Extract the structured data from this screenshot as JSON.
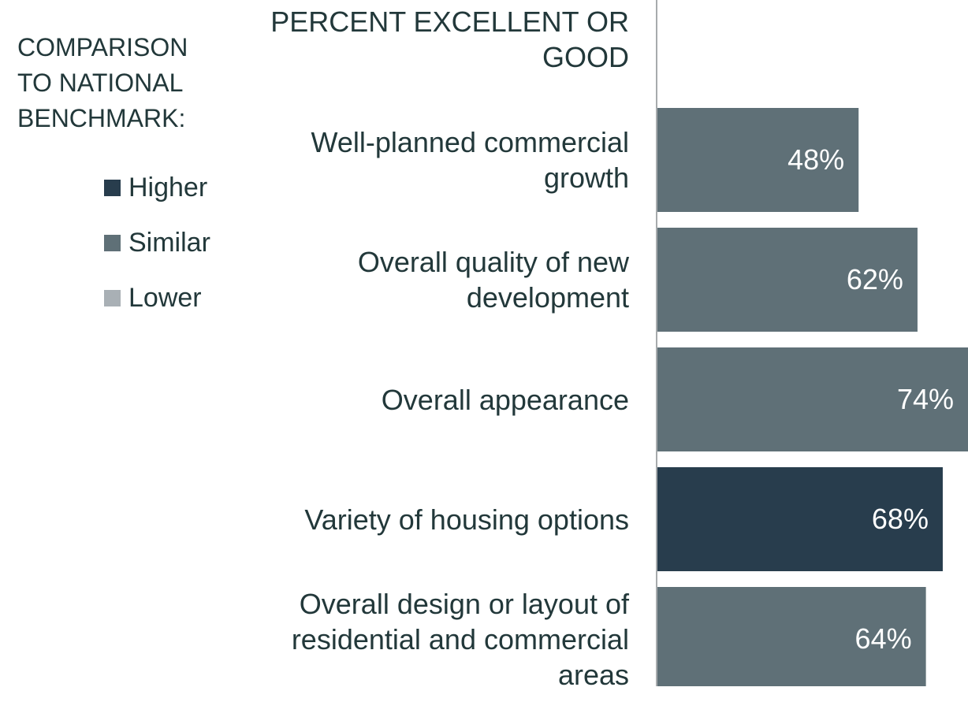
{
  "chart_data": {
    "type": "barh",
    "axis_title": "PERCENT EXCELLENT OR GOOD",
    "legend": {
      "title": "COMPARISON TO NATIONAL BENCHMARK:",
      "items": [
        {
          "name": "Higher",
          "color": "#283d4d"
        },
        {
          "name": "Similar",
          "color": "#5f7077"
        },
        {
          "name": "Lower",
          "color": "#a9b0b5"
        }
      ]
    },
    "categories": [
      "Well-planned commercial growth",
      "Overall quality of new development",
      "Overall appearance",
      "Variety of housing options",
      "Overall design or layout of residential and commercial areas"
    ],
    "values": [
      48,
      62,
      74,
      68,
      64
    ],
    "value_labels": [
      "48%",
      "62%",
      "74%",
      "68%",
      "64%"
    ],
    "colors": [
      "#5f7077",
      "#5f7077",
      "#5f7077",
      "#283d4d",
      "#5f7077"
    ]
  }
}
